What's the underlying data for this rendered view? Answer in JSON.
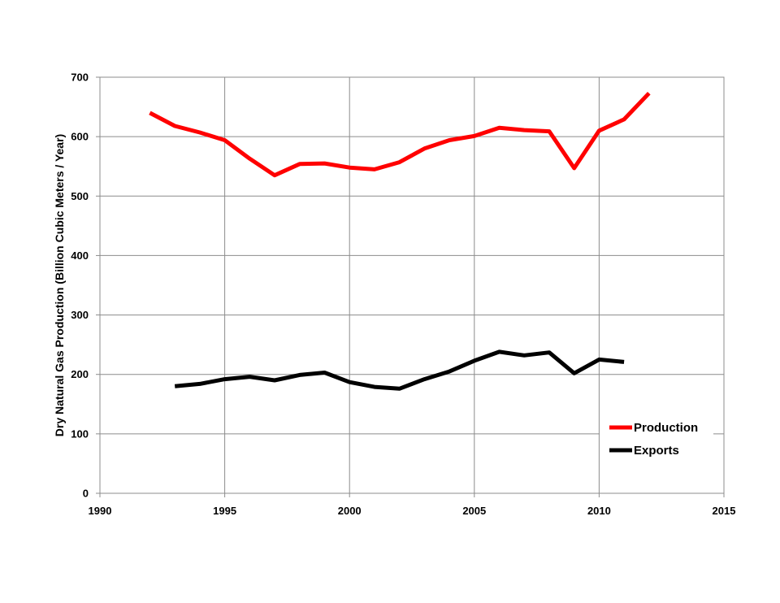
{
  "chart_data": {
    "type": "line",
    "title": "",
    "xlabel": "",
    "ylabel": "Dry Natural Gas Production (Billion Cubic Meters / Year)",
    "xlim": [
      1990,
      2015
    ],
    "ylim": [
      0,
      700
    ],
    "x_ticks": [
      "1990",
      "1995",
      "2000",
      "2005",
      "2010",
      "2015"
    ],
    "y_ticks": [
      "0",
      "100",
      "200",
      "300",
      "400",
      "500",
      "600",
      "700"
    ],
    "grid": true,
    "legend_position": "bottom-right",
    "series": [
      {
        "name": "Production",
        "color": "#ff0000",
        "x": [
          1992,
          1993,
          1994,
          1995,
          1996,
          1997,
          1998,
          1999,
          2000,
          2001,
          2002,
          2003,
          2004,
          2005,
          2006,
          2007,
          2008,
          2009,
          2010,
          2011,
          2012
        ],
        "y": [
          640,
          618,
          607,
          594,
          563,
          535,
          554,
          555,
          548,
          545,
          557,
          580,
          594,
          601,
          615,
          611,
          609,
          547,
          610,
          629,
          673
        ]
      },
      {
        "name": "Exports",
        "color": "#000000",
        "x": [
          1993,
          1994,
          1995,
          1996,
          1997,
          1998,
          1999,
          2000,
          2001,
          2002,
          2003,
          2004,
          2005,
          2006,
          2007,
          2008,
          2009,
          2010,
          2011
        ],
        "y": [
          180,
          184,
          192,
          196,
          190,
          199,
          203,
          187,
          179,
          176,
          192,
          205,
          223,
          238,
          232,
          237,
          202,
          225,
          221
        ]
      }
    ]
  }
}
